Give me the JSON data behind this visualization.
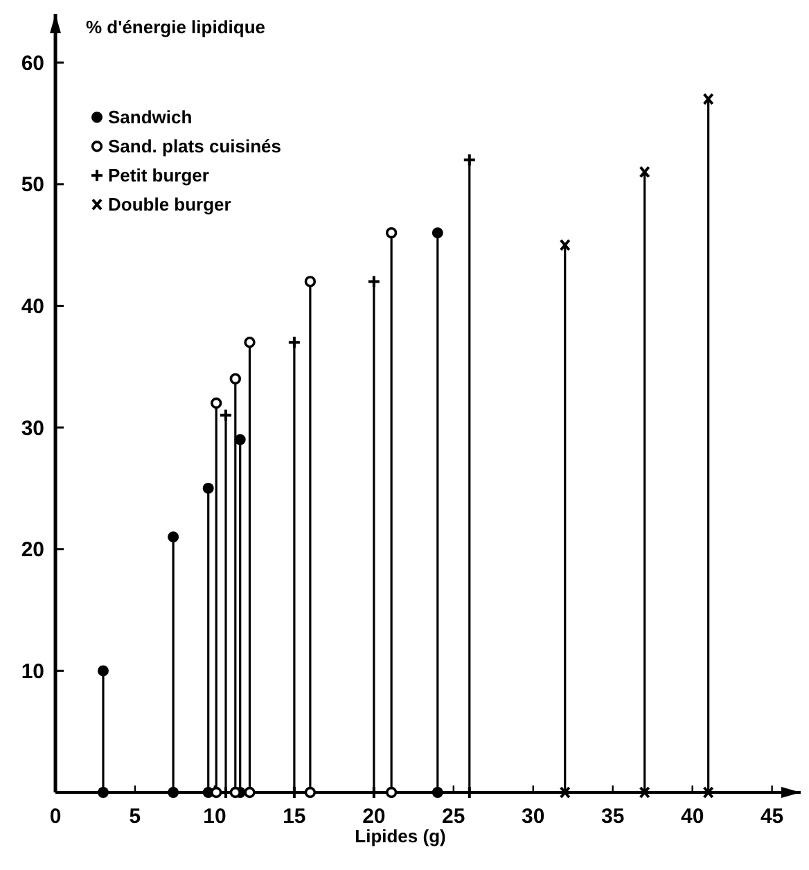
{
  "chart_data": {
    "type": "lollipop",
    "xlabel": "Lipides (g)",
    "ylabel": "% d'énergie lipidique",
    "xlim": [
      0,
      46.8
    ],
    "ylim": [
      0,
      64
    ],
    "xticks": [
      0,
      5,
      10,
      15,
      20,
      25,
      30,
      35,
      40,
      45
    ],
    "yticks": [
      10,
      20,
      30,
      40,
      50,
      60
    ],
    "grid": false,
    "legend": "top left",
    "series": [
      {
        "name": "Sandwich",
        "color": "#000000",
        "marker": "circle",
        "x": [
          3,
          7.4,
          9.6,
          11.6,
          24
        ],
        "values": [
          10,
          21,
          25,
          29,
          46
        ]
      },
      {
        "name": "Sand. plats cuisinés",
        "color": "#000000",
        "marker": "open-circle",
        "x": [
          10.1,
          11.3,
          12.2,
          16,
          21.1
        ],
        "values": [
          32,
          34,
          37,
          42,
          46
        ]
      },
      {
        "name": "Petit burger",
        "color": "#000000",
        "marker": "cross",
        "x": [
          10.7,
          15,
          20,
          26
        ],
        "values": [
          31,
          37,
          42,
          52
        ]
      },
      {
        "name": "Double burger",
        "color": "#000000",
        "marker": "x",
        "x": [
          32,
          37,
          41
        ],
        "values": [
          45,
          51,
          57
        ]
      },
      {
        "type": "scatter",
        "color": "#000000",
        "marker": "circle",
        "x": [
          3,
          7.4,
          9.6,
          11.6,
          24
        ],
        "values": [
          0,
          0,
          0,
          0,
          0
        ]
      },
      {
        "type": "scatter",
        "color": "#000000",
        "marker": "open-circle",
        "x": [
          10.1,
          11.3,
          12.2,
          16,
          21.1
        ],
        "values": [
          0,
          0,
          0,
          0,
          0
        ]
      },
      {
        "type": "scatter",
        "color": "#000000",
        "marker": "cross",
        "x": [
          10.7,
          15,
          20,
          26
        ],
        "values": [
          0,
          0,
          0,
          0
        ]
      },
      {
        "type": "scatter",
        "color": "#000000",
        "marker": "x",
        "x": [
          32,
          37,
          41
        ],
        "values": [
          0,
          0,
          0
        ]
      }
    ]
  }
}
